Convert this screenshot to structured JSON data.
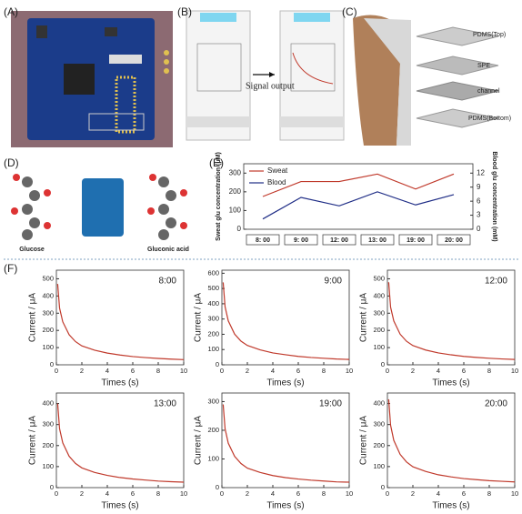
{
  "panel_labels": [
    "(A)",
    "(B)",
    "(C)",
    "(D)",
    "(E)",
    "(F)"
  ],
  "panel_b": {
    "arrow_label": "Signal output"
  },
  "panel_c": {
    "layers": [
      "PDMS(Top)",
      "SPE",
      "channel",
      "PDMS(Bottom)"
    ]
  },
  "panel_d": {
    "labels": [
      "Glucose",
      "Gluconic acid"
    ]
  },
  "chart_data": [
    {
      "type": "line",
      "categories": [
        "8: 00",
        "9: 00",
        "12: 00",
        "13: 00",
        "19: 00",
        "20: 00"
      ],
      "ylabel": "Sweat glu concentration (μM)",
      "y2label": "Blood glu concentration (mM)",
      "ylim": [
        0,
        350
      ],
      "yticks": [
        0,
        100,
        200,
        300
      ],
      "y2lim": [
        0,
        14
      ],
      "y2ticks": [
        0,
        3,
        6,
        9,
        12
      ],
      "legend": "upper left",
      "series": [
        {
          "name": "Sweat",
          "color": "#c0392b",
          "values": [
            175,
            255,
            255,
            295,
            215,
            295
          ]
        },
        {
          "name": "Blood",
          "color": "#1f2d86",
          "axis": "y2",
          "values": [
            2.2,
            6.8,
            5.0,
            8.0,
            5.2,
            7.4
          ]
        }
      ]
    },
    {
      "type": "line",
      "annotation": "8:00",
      "xlabel": "Times (s)",
      "ylabel": "Current / μA",
      "x": [
        0.1,
        0.25,
        0.5,
        1,
        1.5,
        2,
        3,
        4,
        5,
        6,
        7,
        8,
        9,
        10
      ],
      "xlim": [
        0,
        10
      ],
      "xticks": [
        0,
        2,
        4,
        6,
        8,
        10
      ],
      "ylim": [
        0,
        550
      ],
      "yticks": [
        0,
        100,
        200,
        300,
        400,
        500
      ],
      "series": [
        {
          "color": "#c0392b",
          "values": [
            470,
            330,
            250,
            175,
            135,
            110,
            85,
            68,
            57,
            48,
            42,
            37,
            33,
            30
          ]
        }
      ]
    },
    {
      "type": "line",
      "annotation": "9:00",
      "xlabel": "Times (s)",
      "ylabel": "Current / μA",
      "x": [
        0.1,
        0.25,
        0.5,
        1,
        1.5,
        2,
        3,
        4,
        5,
        6,
        7,
        8,
        9,
        10
      ],
      "xlim": [
        0,
        10
      ],
      "xticks": [
        0,
        2,
        4,
        6,
        8,
        10
      ],
      "ylim": [
        0,
        620
      ],
      "yticks": [
        0,
        100,
        200,
        300,
        400,
        500,
        600
      ],
      "series": [
        {
          "color": "#c0392b",
          "values": [
            540,
            380,
            288,
            201,
            155,
            127,
            98,
            78,
            66,
            55,
            48,
            43,
            38,
            35
          ]
        }
      ]
    },
    {
      "type": "line",
      "annotation": "12:00",
      "xlabel": "Times (s)",
      "ylabel": "Current / μA",
      "x": [
        0.1,
        0.25,
        0.5,
        1,
        1.5,
        2,
        3,
        4,
        5,
        6,
        7,
        8,
        9,
        10
      ],
      "xlim": [
        0,
        10
      ],
      "xticks": [
        0,
        2,
        4,
        6,
        8,
        10
      ],
      "ylim": [
        0,
        550
      ],
      "yticks": [
        0,
        100,
        200,
        300,
        400,
        500
      ],
      "series": [
        {
          "color": "#c0392b",
          "values": [
            480,
            335,
            255,
            178,
            137,
            112,
            86,
            69,
            58,
            49,
            43,
            38,
            34,
            31
          ]
        }
      ]
    },
    {
      "type": "line",
      "annotation": "13:00",
      "xlabel": "Times (s)",
      "ylabel": "Current / μA",
      "x": [
        0.1,
        0.25,
        0.5,
        1,
        1.5,
        2,
        3,
        4,
        5,
        6,
        7,
        8,
        9,
        10
      ],
      "xlim": [
        0,
        10
      ],
      "xticks": [
        0,
        2,
        4,
        6,
        8,
        10
      ],
      "ylim": [
        0,
        450
      ],
      "yticks": [
        0,
        100,
        200,
        300,
        400
      ],
      "series": [
        {
          "color": "#c0392b",
          "values": [
            400,
            280,
            213,
            149,
            115,
            94,
            72,
            58,
            48,
            41,
            36,
            31,
            28,
            26
          ]
        }
      ]
    },
    {
      "type": "line",
      "annotation": "19:00",
      "xlabel": "Times (s)",
      "ylabel": "Current / μA",
      "x": [
        0.1,
        0.25,
        0.5,
        1,
        1.5,
        2,
        3,
        4,
        5,
        6,
        7,
        8,
        9,
        10
      ],
      "xlim": [
        0,
        10
      ],
      "xticks": [
        0,
        2,
        4,
        6,
        8,
        10
      ],
      "ylim": [
        0,
        330
      ],
      "yticks": [
        0,
        100,
        200,
        300
      ],
      "series": [
        {
          "color": "#c0392b",
          "values": [
            290,
            205,
            155,
            109,
            84,
            68,
            53,
            42,
            35,
            30,
            26,
            23,
            20,
            19
          ]
        }
      ]
    },
    {
      "type": "line",
      "annotation": "20:00",
      "xlabel": "Times (s)",
      "ylabel": "Current / μA",
      "x": [
        0.1,
        0.25,
        0.5,
        1,
        1.5,
        2,
        3,
        4,
        5,
        6,
        7,
        8,
        9,
        10
      ],
      "xlim": [
        0,
        10
      ],
      "xticks": [
        0,
        2,
        4,
        6,
        8,
        10
      ],
      "ylim": [
        0,
        450
      ],
      "yticks": [
        0,
        100,
        200,
        300,
        400
      ],
      "series": [
        {
          "color": "#c0392b",
          "values": [
            420,
            297,
            225,
            158,
            122,
            99,
            77,
            61,
            51,
            43,
            38,
            33,
            30,
            27
          ]
        }
      ]
    }
  ]
}
